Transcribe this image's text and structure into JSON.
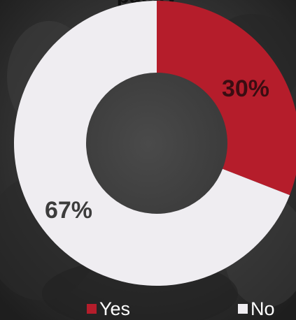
{
  "title_fragment": "pacity",
  "colors": {
    "yes": "#b51d2b",
    "no": "#efedf1",
    "label_on_yes": "#3a0d12",
    "label_on_no": "#3c3c3c",
    "background": "#2f2f2f"
  },
  "chart_data": {
    "type": "pie",
    "donut": true,
    "categories": [
      "Yes",
      "No"
    ],
    "values": [
      30,
      67
    ],
    "labels": [
      "30%",
      "67%"
    ],
    "legend_position": "bottom"
  },
  "legend": {
    "items": [
      {
        "label": "Yes"
      },
      {
        "label": "No"
      }
    ]
  }
}
